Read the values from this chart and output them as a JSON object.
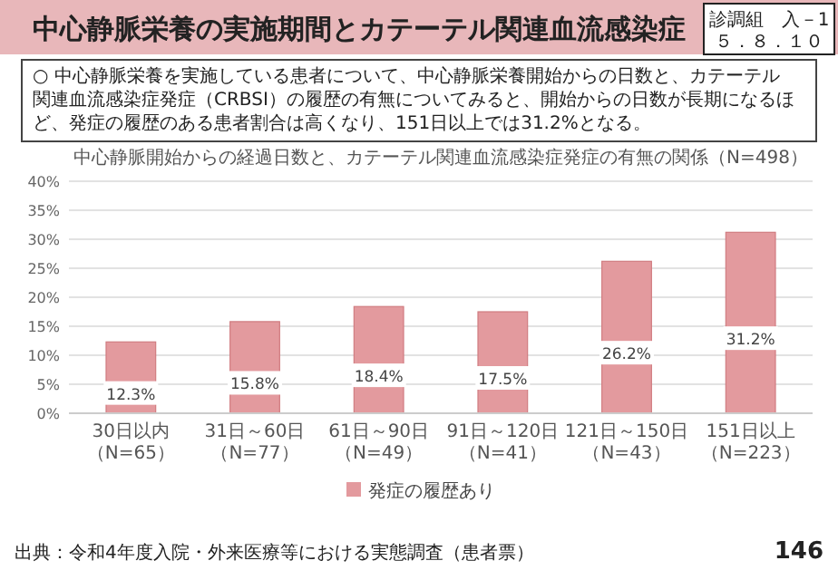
{
  "chart_data": {
    "type": "bar",
    "title": "中心静脈栄養の実施期間とカテーテル関連血流感染症",
    "subtitle": "中心静脈開始からの経過日数と、カテーテル関連血流感染症発症の有無の関係（N=498）",
    "categories": [
      "30日以内（N=65）",
      "31日～60日（N=77）",
      "61日～90日（N=49）",
      "91日～120日（N=41）",
      "121日～150日（N=43）",
      "151日以上（N=223）"
    ],
    "series": [
      {
        "name": "発症の履歴あり",
        "color": "#e39a9e",
        "values": [
          12.3,
          15.8,
          18.4,
          17.5,
          26.2,
          31.2
        ]
      }
    ],
    "value_labels": [
      "12.3%",
      "15.8%",
      "18.4%",
      "17.5%",
      "26.2%",
      "31.2%"
    ],
    "ylim": [
      0,
      40
    ],
    "yticks": [
      {
        "value": 0,
        "label": "0%"
      },
      {
        "value": 5,
        "label": "5%"
      },
      {
        "value": 10,
        "label": "10%"
      },
      {
        "value": 15,
        "label": "15%"
      },
      {
        "value": 20,
        "label": "20%"
      },
      {
        "value": 25,
        "label": "25%"
      },
      {
        "value": 30,
        "label": "30%"
      },
      {
        "value": 35,
        "label": "35%"
      },
      {
        "value": 40,
        "label": "40%"
      }
    ],
    "grid": "y",
    "legend": "bottom",
    "annotations": [
      "診調組　入－1\n５．８．１０",
      "○ 中心静脈栄養を実施している患者について、中心静脈栄養開始からの日数と、カテーテル関連血流感染症発症（CRBSI）の履歴の有無についてみると、開始からの日数が長期になるほど、発症の履歴のある患者割合は高くなり、151日以上では31.2%となる。",
      "出典：令和4年度入院・外来医療等における実態調査（患者票）",
      "146"
    ]
  }
}
